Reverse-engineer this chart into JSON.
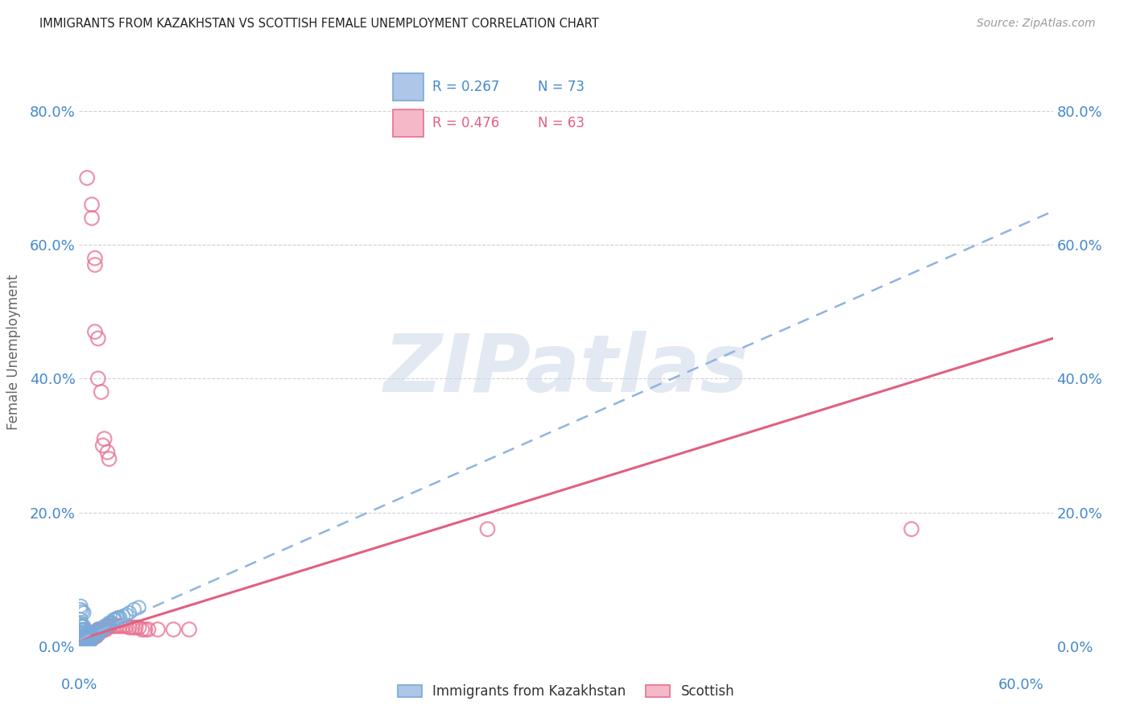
{
  "title": "IMMIGRANTS FROM KAZAKHSTAN VS SCOTTISH FEMALE UNEMPLOYMENT CORRELATION CHART",
  "source": "Source: ZipAtlas.com",
  "ylabel_tick_labels": [
    "0.0%",
    "20.0%",
    "40.0%",
    "60.0%",
    "80.0%"
  ],
  "ylabel_ticks": [
    0.0,
    0.2,
    0.4,
    0.6,
    0.8
  ],
  "xlim": [
    0.0,
    0.62
  ],
  "ylim": [
    0.0,
    0.88
  ],
  "x_axis_left_label": "0.0%",
  "x_axis_right_label": "60.0%",
  "watermark": "ZIPatlas",
  "legend_label_blue": "Immigrants from Kazakhstan",
  "legend_label_pink": "Scottish",
  "R_blue": 0.267,
  "N_blue": 73,
  "R_pink": 0.476,
  "N_pink": 63,
  "blue_fill": "#aec6e8",
  "blue_edge": "#7aaad8",
  "pink_fill": "#f4b8c8",
  "pink_edge": "#e87090",
  "blue_line_color": "#90b4e0",
  "pink_line_color": "#e06080",
  "axis_tick_color": "#4488cc",
  "grid_color": "#cccccc",
  "title_color": "#222222",
  "source_color": "#999999",
  "watermark_color": "#ccd8e8",
  "ylabel_text": "Female Unemployment",
  "blue_points": [
    [
      0.001,
      0.005
    ],
    [
      0.001,
      0.01
    ],
    [
      0.001,
      0.015
    ],
    [
      0.001,
      0.02
    ],
    [
      0.001,
      0.025
    ],
    [
      0.001,
      0.03
    ],
    [
      0.001,
      0.035
    ],
    [
      0.001,
      0.04
    ],
    [
      0.001,
      0.0
    ],
    [
      0.002,
      0.005
    ],
    [
      0.002,
      0.01
    ],
    [
      0.002,
      0.015
    ],
    [
      0.002,
      0.02
    ],
    [
      0.002,
      0.025
    ],
    [
      0.002,
      0.03
    ],
    [
      0.002,
      0.0
    ],
    [
      0.003,
      0.005
    ],
    [
      0.003,
      0.01
    ],
    [
      0.003,
      0.015
    ],
    [
      0.003,
      0.02
    ],
    [
      0.003,
      0.025
    ],
    [
      0.003,
      0.03
    ],
    [
      0.004,
      0.005
    ],
    [
      0.004,
      0.01
    ],
    [
      0.004,
      0.015
    ],
    [
      0.004,
      0.02
    ],
    [
      0.004,
      0.025
    ],
    [
      0.005,
      0.005
    ],
    [
      0.005,
      0.01
    ],
    [
      0.005,
      0.015
    ],
    [
      0.005,
      0.02
    ],
    [
      0.006,
      0.005
    ],
    [
      0.006,
      0.01
    ],
    [
      0.006,
      0.015
    ],
    [
      0.006,
      0.02
    ],
    [
      0.007,
      0.01
    ],
    [
      0.007,
      0.015
    ],
    [
      0.007,
      0.02
    ],
    [
      0.008,
      0.01
    ],
    [
      0.008,
      0.015
    ],
    [
      0.008,
      0.02
    ],
    [
      0.009,
      0.015
    ],
    [
      0.009,
      0.02
    ],
    [
      0.01,
      0.015
    ],
    [
      0.01,
      0.02
    ],
    [
      0.011,
      0.015
    ],
    [
      0.011,
      0.02
    ],
    [
      0.012,
      0.02
    ],
    [
      0.012,
      0.025
    ],
    [
      0.013,
      0.02
    ],
    [
      0.013,
      0.025
    ],
    [
      0.014,
      0.025
    ],
    [
      0.015,
      0.025
    ],
    [
      0.016,
      0.03
    ],
    [
      0.017,
      0.03
    ],
    [
      0.018,
      0.03
    ],
    [
      0.019,
      0.035
    ],
    [
      0.02,
      0.035
    ],
    [
      0.021,
      0.035
    ],
    [
      0.022,
      0.04
    ],
    [
      0.023,
      0.04
    ],
    [
      0.024,
      0.042
    ],
    [
      0.025,
      0.043
    ],
    [
      0.026,
      0.043
    ],
    [
      0.028,
      0.045
    ],
    [
      0.03,
      0.047
    ],
    [
      0.001,
      0.06
    ],
    [
      0.001,
      0.055
    ],
    [
      0.002,
      0.052
    ],
    [
      0.003,
      0.05
    ],
    [
      0.032,
      0.05
    ],
    [
      0.035,
      0.055
    ],
    [
      0.038,
      0.058
    ]
  ],
  "pink_points": [
    [
      0.001,
      0.0
    ],
    [
      0.001,
      0.005
    ],
    [
      0.002,
      0.0
    ],
    [
      0.002,
      0.005
    ],
    [
      0.003,
      0.005
    ],
    [
      0.003,
      0.01
    ],
    [
      0.004,
      0.005
    ],
    [
      0.004,
      0.01
    ],
    [
      0.005,
      0.005
    ],
    [
      0.005,
      0.01
    ],
    [
      0.006,
      0.01
    ],
    [
      0.006,
      0.015
    ],
    [
      0.007,
      0.01
    ],
    [
      0.007,
      0.015
    ],
    [
      0.008,
      0.01
    ],
    [
      0.008,
      0.015
    ],
    [
      0.009,
      0.015
    ],
    [
      0.009,
      0.02
    ],
    [
      0.01,
      0.015
    ],
    [
      0.01,
      0.02
    ],
    [
      0.011,
      0.015
    ],
    [
      0.011,
      0.02
    ],
    [
      0.012,
      0.02
    ],
    [
      0.012,
      0.025
    ],
    [
      0.013,
      0.02
    ],
    [
      0.013,
      0.025
    ],
    [
      0.014,
      0.025
    ],
    [
      0.015,
      0.025
    ],
    [
      0.016,
      0.025
    ],
    [
      0.017,
      0.025
    ],
    [
      0.018,
      0.03
    ],
    [
      0.019,
      0.03
    ],
    [
      0.02,
      0.03
    ],
    [
      0.022,
      0.03
    ],
    [
      0.024,
      0.03
    ],
    [
      0.026,
      0.03
    ],
    [
      0.028,
      0.03
    ],
    [
      0.03,
      0.03
    ],
    [
      0.032,
      0.028
    ],
    [
      0.034,
      0.028
    ],
    [
      0.036,
      0.028
    ],
    [
      0.038,
      0.028
    ],
    [
      0.04,
      0.025
    ],
    [
      0.042,
      0.025
    ],
    [
      0.044,
      0.025
    ],
    [
      0.05,
      0.025
    ],
    [
      0.06,
      0.025
    ],
    [
      0.07,
      0.025
    ],
    [
      0.005,
      0.7
    ],
    [
      0.008,
      0.64
    ],
    [
      0.008,
      0.66
    ],
    [
      0.01,
      0.57
    ],
    [
      0.01,
      0.58
    ],
    [
      0.01,
      0.47
    ],
    [
      0.012,
      0.46
    ],
    [
      0.012,
      0.4
    ],
    [
      0.014,
      0.38
    ],
    [
      0.015,
      0.3
    ],
    [
      0.016,
      0.31
    ],
    [
      0.018,
      0.29
    ],
    [
      0.019,
      0.28
    ],
    [
      0.53,
      0.175
    ],
    [
      0.26,
      0.175
    ]
  ]
}
